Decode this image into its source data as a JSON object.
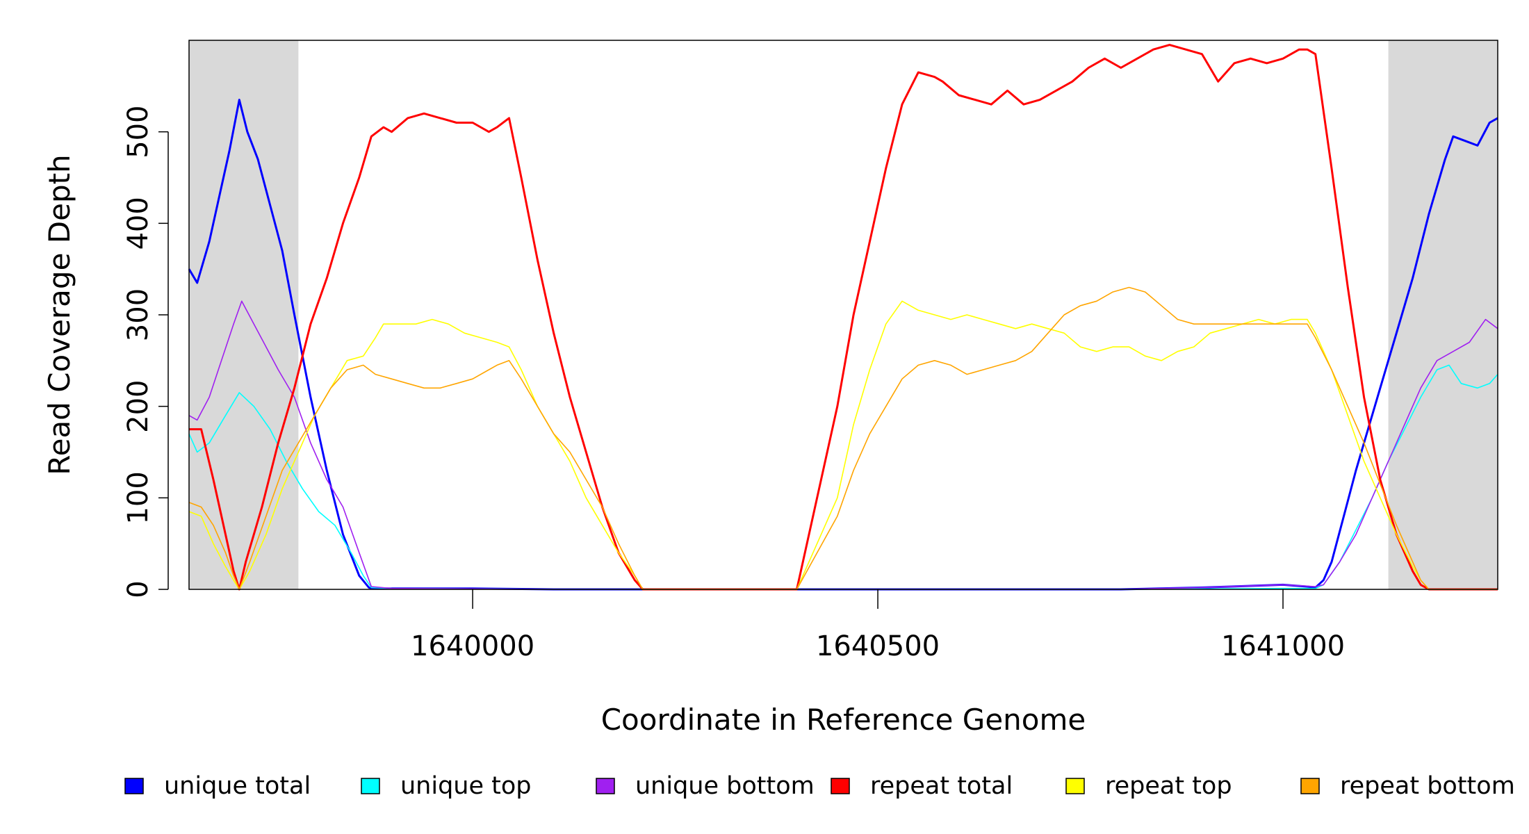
{
  "chart_data": {
    "type": "line",
    "xlabel": "Coordinate in Reference Genome",
    "ylabel": "Read Coverage Depth",
    "xlim": [
      1639650,
      1641265
    ],
    "ylim": [
      0,
      600
    ],
    "x_ticks": [
      1640000,
      1640500,
      1641000
    ],
    "x_tick_labels": [
      "1640000",
      "1640500",
      "1641000"
    ],
    "y_ticks": [
      0,
      100,
      200,
      300,
      400,
      500
    ],
    "y_tick_labels": [
      "0",
      "100",
      "200",
      "300",
      "400",
      "500"
    ],
    "grid": false,
    "legend_position": "bottom",
    "shaded_regions": [
      {
        "x_start": 1639650,
        "x_end": 1639785,
        "color": "#d9d9d9"
      },
      {
        "x_start": 1641130,
        "x_end": 1641265,
        "color": "#d9d9d9"
      }
    ],
    "series": [
      {
        "name": "unique total",
        "color": "#0000ff",
        "x": [
          1639650,
          1639660,
          1639675,
          1639690,
          1639700,
          1639712,
          1639722,
          1639735,
          1639750,
          1639765,
          1639780,
          1639800,
          1639820,
          1639840,
          1639860,
          1639872,
          1639875,
          1639900,
          1640000,
          1640100,
          1640400,
          1640700,
          1640800,
          1640900,
          1641000,
          1641030,
          1641040,
          1641050,
          1641060,
          1641075,
          1641090,
          1641100,
          1641120,
          1641140,
          1641160,
          1641180,
          1641200,
          1641210,
          1641225,
          1641240,
          1641255,
          1641265
        ],
        "y": [
          350,
          335,
          380,
          440,
          480,
          535,
          500,
          470,
          420,
          370,
          300,
          210,
          130,
          60,
          15,
          2,
          1,
          1,
          1,
          0,
          0,
          0,
          0,
          2,
          5,
          3,
          2,
          10,
          30,
          80,
          130,
          160,
          220,
          280,
          340,
          410,
          470,
          495,
          490,
          485,
          510,
          515
        ]
      },
      {
        "name": "unique top",
        "color": "#00ffff",
        "x": [
          1639650,
          1639660,
          1639675,
          1639695,
          1639712,
          1639730,
          1639750,
          1639770,
          1639790,
          1639810,
          1639830,
          1639850,
          1639865,
          1639875,
          1639900,
          1640100,
          1640400,
          1640800,
          1641000,
          1641040,
          1641050,
          1641070,
          1641090,
          1641110,
          1641130,
          1641150,
          1641170,
          1641190,
          1641205,
          1641220,
          1641240,
          1641255,
          1641265
        ],
        "y": [
          170,
          150,
          160,
          190,
          215,
          200,
          175,
          140,
          110,
          85,
          70,
          40,
          15,
          2,
          1,
          0,
          0,
          0,
          1,
          1,
          5,
          30,
          65,
          100,
          140,
          175,
          210,
          240,
          245,
          225,
          220,
          225,
          235
        ]
      },
      {
        "name": "unique bottom",
        "color": "#a020f0",
        "x": [
          1639650,
          1639660,
          1639675,
          1639690,
          1639705,
          1639715,
          1639730,
          1639745,
          1639760,
          1639780,
          1639800,
          1639820,
          1639840,
          1639860,
          1639875,
          1639900,
          1640100,
          1640400,
          1640800,
          1640900,
          1641000,
          1641040,
          1641050,
          1641070,
          1641090,
          1641110,
          1641130,
          1641150,
          1641170,
          1641190,
          1641210,
          1641230,
          1641250,
          1641265
        ],
        "y": [
          190,
          185,
          210,
          250,
          290,
          315,
          290,
          265,
          240,
          210,
          160,
          120,
          90,
          40,
          3,
          1,
          0,
          0,
          0,
          2,
          5,
          3,
          5,
          30,
          60,
          100,
          140,
          180,
          220,
          250,
          260,
          270,
          295,
          285
        ]
      },
      {
        "name": "repeat total",
        "color": "#ff0000",
        "x": [
          1639650,
          1639665,
          1639680,
          1639695,
          1639705,
          1639712,
          1639720,
          1639740,
          1639760,
          1639780,
          1639800,
          1639820,
          1639840,
          1639860,
          1639875,
          1639890,
          1639900,
          1639920,
          1639940,
          1639960,
          1639980,
          1640000,
          1640020,
          1640030,
          1640045,
          1640060,
          1640080,
          1640100,
          1640120,
          1640140,
          1640160,
          1640180,
          1640200,
          1640210,
          1640220,
          1640400,
          1640450,
          1640470,
          1640490,
          1640510,
          1640530,
          1640550,
          1640570,
          1640580,
          1640600,
          1640620,
          1640640,
          1640660,
          1640680,
          1640700,
          1640720,
          1640740,
          1640760,
          1640780,
          1640800,
          1640820,
          1640840,
          1640860,
          1640880,
          1640900,
          1640920,
          1640940,
          1640960,
          1640980,
          1641000,
          1641020,
          1641030,
          1641040,
          1641060,
          1641080,
          1641100,
          1641120,
          1641140,
          1641160,
          1641170,
          1641180,
          1641200,
          1641265
        ],
        "y": [
          175,
          175,
          120,
          60,
          20,
          0,
          30,
          90,
          160,
          220,
          290,
          340,
          400,
          450,
          495,
          505,
          500,
          515,
          520,
          515,
          510,
          510,
          500,
          505,
          515,
          450,
          360,
          280,
          210,
          150,
          90,
          40,
          10,
          0,
          0,
          0,
          200,
          300,
          380,
          460,
          530,
          565,
          560,
          555,
          540,
          535,
          530,
          545,
          530,
          535,
          545,
          555,
          570,
          580,
          570,
          580,
          590,
          595,
          590,
          585,
          555,
          575,
          580,
          575,
          580,
          590,
          590,
          585,
          460,
          330,
          210,
          120,
          60,
          20,
          5,
          0,
          0,
          0
        ]
      },
      {
        "name": "repeat top",
        "color": "#ffff00",
        "x": [
          1639650,
          1639665,
          1639680,
          1639695,
          1639705,
          1639712,
          1639725,
          1639745,
          1639765,
          1639785,
          1639805,
          1639825,
          1639845,
          1639865,
          1639880,
          1639890,
          1639910,
          1639930,
          1639950,
          1639970,
          1639990,
          1640010,
          1640030,
          1640045,
          1640060,
          1640080,
          1640100,
          1640120,
          1640140,
          1640160,
          1640180,
          1640200,
          1640210,
          1640220,
          1640400,
          1640450,
          1640470,
          1640490,
          1640510,
          1640530,
          1640550,
          1640570,
          1640590,
          1640610,
          1640630,
          1640650,
          1640670,
          1640690,
          1640710,
          1640730,
          1640750,
          1640770,
          1640790,
          1640810,
          1640830,
          1640850,
          1640870,
          1640890,
          1640910,
          1640930,
          1640950,
          1640970,
          1640990,
          1641010,
          1641030,
          1641040,
          1641060,
          1641080,
          1641100,
          1641120,
          1641140,
          1641160,
          1641170,
          1641180,
          1641200,
          1641265
        ],
        "y": [
          85,
          80,
          50,
          25,
          10,
          0,
          20,
          60,
          110,
          150,
          190,
          220,
          250,
          255,
          275,
          290,
          290,
          290,
          295,
          290,
          280,
          275,
          270,
          265,
          240,
          200,
          170,
          140,
          100,
          70,
          40,
          15,
          0,
          0,
          0,
          100,
          180,
          240,
          290,
          315,
          305,
          300,
          295,
          300,
          295,
          290,
          285,
          290,
          285,
          280,
          265,
          260,
          265,
          265,
          255,
          250,
          260,
          265,
          280,
          285,
          290,
          295,
          290,
          295,
          295,
          280,
          240,
          190,
          140,
          100,
          60,
          25,
          10,
          0,
          0,
          0
        ]
      },
      {
        "name": "repeat bottom",
        "color": "#ffa500",
        "x": [
          1639650,
          1639665,
          1639680,
          1639695,
          1639705,
          1639712,
          1639725,
          1639745,
          1639765,
          1639785,
          1639805,
          1639825,
          1639845,
          1639865,
          1639880,
          1639900,
          1639920,
          1639940,
          1639960,
          1639980,
          1640000,
          1640020,
          1640030,
          1640045,
          1640060,
          1640080,
          1640100,
          1640120,
          1640140,
          1640160,
          1640180,
          1640200,
          1640210,
          1640220,
          1640400,
          1640450,
          1640470,
          1640490,
          1640510,
          1640530,
          1640550,
          1640570,
          1640590,
          1640610,
          1640630,
          1640650,
          1640670,
          1640690,
          1640710,
          1640730,
          1640750,
          1640770,
          1640790,
          1640810,
          1640830,
          1640850,
          1640870,
          1640890,
          1640910,
          1640930,
          1640950,
          1640970,
          1640990,
          1641010,
          1641030,
          1641040,
          1641060,
          1641080,
          1641100,
          1641120,
          1641140,
          1641160,
          1641170,
          1641180,
          1641200,
          1641265
        ],
        "y": [
          95,
          90,
          70,
          40,
          15,
          0,
          30,
          80,
          130,
          160,
          190,
          220,
          240,
          245,
          235,
          230,
          225,
          220,
          220,
          225,
          230,
          240,
          245,
          250,
          230,
          200,
          170,
          150,
          120,
          90,
          50,
          15,
          0,
          0,
          0,
          80,
          130,
          170,
          200,
          230,
          245,
          250,
          245,
          235,
          240,
          245,
          250,
          260,
          280,
          300,
          310,
          315,
          325,
          330,
          325,
          310,
          295,
          290,
          290,
          290,
          290,
          290,
          290,
          290,
          290,
          275,
          240,
          200,
          160,
          115,
          70,
          30,
          10,
          0,
          0,
          0
        ]
      }
    ]
  }
}
